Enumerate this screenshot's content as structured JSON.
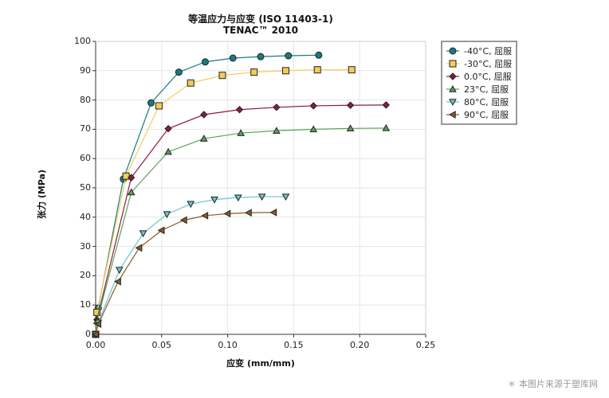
{
  "chart_data": {
    "type": "line",
    "title": "等温应力与应变 (ISO 11403-1)",
    "subtitle": "TENAC™ 2010",
    "xlabel": "应变 (mm/mm)",
    "ylabel": "张力 (MPa)",
    "xlim": [
      0.0,
      0.25
    ],
    "ylim": [
      0,
      100
    ],
    "xticks": [
      "0.00",
      "0.05",
      "0.10",
      "0.15",
      "0.20",
      "0.25"
    ],
    "yticks": [
      "0",
      "10",
      "20",
      "30",
      "40",
      "50",
      "60",
      "70",
      "80",
      "90",
      "100"
    ],
    "grid": true,
    "legend_position": "right",
    "series": [
      {
        "name": "-40°C, 屈服",
        "color": "#1a7a80",
        "marker": "circle",
        "x": [
          0.0,
          0.002,
          0.021,
          0.042,
          0.063,
          0.083,
          0.104,
          0.125,
          0.146,
          0.169
        ],
        "y": [
          0,
          9,
          53,
          79,
          89.5,
          93,
          94.3,
          94.8,
          95.1,
          95.3
        ]
      },
      {
        "name": "-30°C, 屈服",
        "color": "#f2cc5a",
        "marker": "square",
        "x": [
          0.0,
          0.001,
          0.023,
          0.048,
          0.072,
          0.096,
          0.12,
          0.144,
          0.168,
          0.194
        ],
        "y": [
          0,
          7.5,
          54,
          78,
          85.8,
          88.4,
          89.5,
          90,
          90.3,
          90.3
        ]
      },
      {
        "name": "0.0°C, 屈服",
        "color": "#8b1d3a",
        "marker": "diamond",
        "x": [
          0.0,
          0.001,
          0.027,
          0.055,
          0.082,
          0.109,
          0.137,
          0.165,
          0.193,
          0.22
        ],
        "y": [
          0,
          5,
          53.5,
          70.2,
          75,
          76.7,
          77.5,
          78,
          78.2,
          78.3
        ]
      },
      {
        "name": "23°C, 屈服",
        "color": "#5aa15a",
        "marker": "triangle-up",
        "x": [
          0.0,
          0.001,
          0.027,
          0.055,
          0.082,
          0.11,
          0.137,
          0.165,
          0.193,
          0.22
        ],
        "y": [
          0,
          4.5,
          48.5,
          62.3,
          66.8,
          68.7,
          69.5,
          70,
          70.3,
          70.4
        ]
      },
      {
        "name": "80°C, 屈服",
        "color": "#6cc4c8",
        "marker": "triangle-down",
        "x": [
          0.0,
          0.002,
          0.018,
          0.036,
          0.054,
          0.072,
          0.09,
          0.108,
          0.126,
          0.144
        ],
        "y": [
          0,
          4,
          22,
          34.5,
          41,
          44.5,
          46,
          46.7,
          47,
          47
        ]
      },
      {
        "name": "90°C, 屈服",
        "color": "#8b5a2b",
        "marker": "triangle-left",
        "x": [
          0.0,
          0.002,
          0.017,
          0.033,
          0.05,
          0.067,
          0.083,
          0.1,
          0.116,
          0.135
        ],
        "y": [
          0,
          3.5,
          18,
          29.5,
          35.5,
          39,
          40.5,
          41.2,
          41.5,
          41.6
        ]
      }
    ]
  },
  "watermark": "＊ 本图片来源于塑库网"
}
